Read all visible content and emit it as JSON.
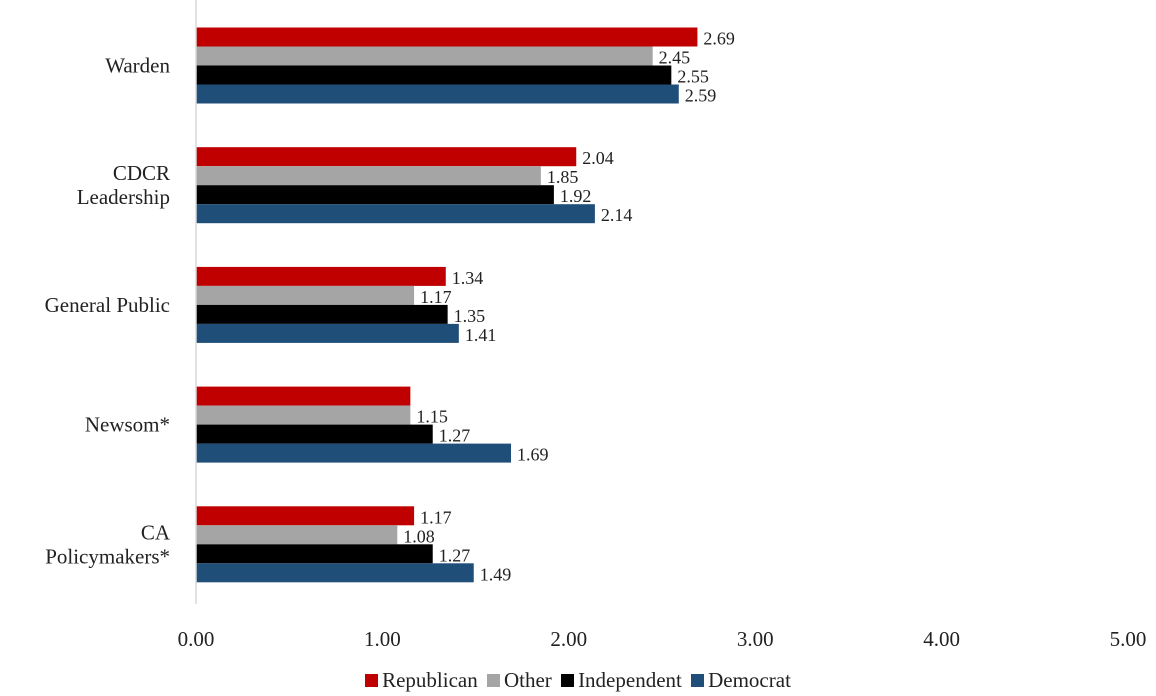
{
  "chart_data": {
    "type": "bar",
    "orientation": "horizontal",
    "categories": [
      "Warden",
      "CDCR Leadership",
      "General Public",
      "Newsom*",
      "CA Policymakers*"
    ],
    "category_lines": [
      [
        "Warden"
      ],
      [
        "CDCR",
        "Leadership"
      ],
      [
        "General Public"
      ],
      [
        "Newsom*"
      ],
      [
        "CA",
        "Policymakers*"
      ]
    ],
    "series": [
      {
        "name": "Republican",
        "color": "#c00000",
        "values": [
          2.69,
          2.04,
          1.34,
          1.15,
          1.17
        ]
      },
      {
        "name": "Other",
        "color": "#a5a5a5",
        "values": [
          2.45,
          1.85,
          1.17,
          1.15,
          1.08
        ]
      },
      {
        "name": "Independent",
        "color": "#000000",
        "values": [
          2.55,
          1.92,
          1.35,
          1.27,
          1.27
        ]
      },
      {
        "name": "Democrat",
        "color": "#1f4e79",
        "values": [
          2.59,
          2.14,
          1.41,
          1.69,
          1.49
        ]
      }
    ],
    "value_labels": [
      [
        "2.69",
        "2.45",
        "2.55",
        "2.59"
      ],
      [
        "2.04",
        "1.85",
        "1.92",
        "2.14"
      ],
      [
        "1.34",
        "1.17",
        "1.35",
        "1.41"
      ],
      [
        "",
        "1.15",
        "1.27",
        "1.69"
      ],
      [
        "1.17",
        "1.08",
        "1.27",
        "1.49"
      ]
    ],
    "xlim": [
      0,
      5
    ],
    "xticks": [
      "0.00",
      "1.00",
      "2.00",
      "3.00",
      "4.00",
      "5.00"
    ],
    "grid": false,
    "legend_position": "bottom"
  }
}
